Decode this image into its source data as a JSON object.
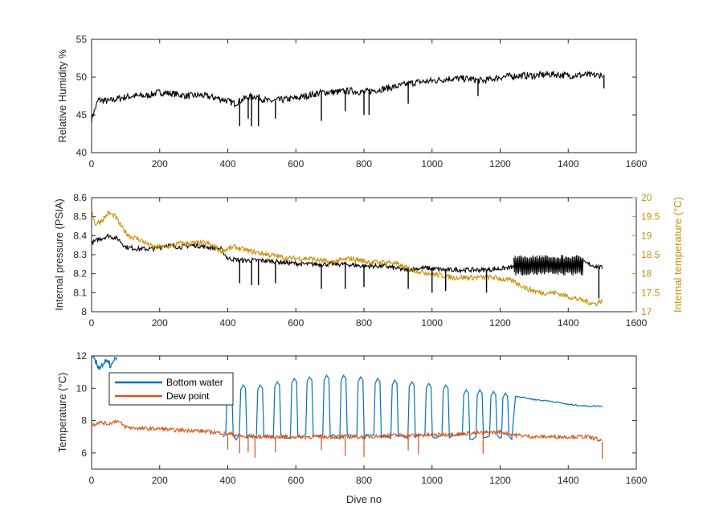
{
  "colors": {
    "black_series": "#000000",
    "blue": "#0072bd",
    "orange": "#d95319",
    "gold": "#c8900a",
    "axis": "#262626"
  },
  "chart_data": [
    {
      "type": "line",
      "id": "humidity",
      "xlabel": "",
      "ylabel": "Relative Humidity %",
      "xlim": [
        0,
        1600
      ],
      "ylim": [
        40,
        55
      ],
      "xticks": [
        0,
        200,
        400,
        600,
        800,
        1000,
        1200,
        1400,
        1600
      ],
      "yticks": [
        40,
        45,
        50,
        55
      ],
      "series": [
        {
          "color": "#000000",
          "x": [
            0,
            20,
            50,
            80,
            120,
            160,
            200,
            240,
            280,
            320,
            360,
            390,
            420,
            450,
            480,
            520,
            560,
            600,
            640,
            680,
            720,
            760,
            800,
            850,
            900,
            950,
            1000,
            1050,
            1100,
            1150,
            1200,
            1250,
            1300,
            1350,
            1400,
            1450,
            1480,
            1500
          ],
          "y": [
            44.5,
            47.0,
            46.8,
            47.2,
            47.5,
            47.5,
            48.0,
            47.8,
            47.5,
            47.6,
            47.3,
            47.0,
            46.5,
            47.2,
            47.5,
            46.8,
            47.0,
            47.2,
            47.6,
            48.0,
            48.0,
            48.2,
            48.0,
            48.4,
            48.8,
            49.3,
            49.5,
            49.8,
            49.8,
            49.5,
            50.0,
            50.2,
            50.2,
            50.4,
            50.2,
            50.3,
            50.2,
            50.3
          ]
        }
      ],
      "spikes": [
        {
          "x": 435,
          "y": 43.5
        },
        {
          "x": 460,
          "y": 44.5
        },
        {
          "x": 470,
          "y": 43.5
        },
        {
          "x": 490,
          "y": 43.5
        },
        {
          "x": 540,
          "y": 44.5
        },
        {
          "x": 675,
          "y": 44.2
        },
        {
          "x": 745,
          "y": 45.5
        },
        {
          "x": 800,
          "y": 45.0
        },
        {
          "x": 815,
          "y": 45.0
        },
        {
          "x": 930,
          "y": 46.5
        },
        {
          "x": 1135,
          "y": 47.5
        },
        {
          "x": 1505,
          "y": 48.5
        }
      ]
    },
    {
      "type": "line",
      "id": "pressure",
      "xlabel": "",
      "ylabel": "Internal pressure (PSIA)",
      "ylabel_right": "Internal temperature (°C)",
      "xlim": [
        0,
        1600
      ],
      "ylim": [
        8,
        8.6
      ],
      "ylim_right": [
        17,
        20
      ],
      "xticks": [
        0,
        200,
        400,
        600,
        800,
        1000,
        1200,
        1400,
        1600
      ],
      "yticks": [
        8,
        8.1,
        8.2,
        8.3,
        8.4,
        8.5,
        8.6
      ],
      "yticks_right": [
        17,
        17.5,
        18,
        18.5,
        19,
        19.5,
        20
      ],
      "series": [
        {
          "axis": "left",
          "color": "#000000",
          "x": [
            0,
            20,
            50,
            80,
            100,
            140,
            180,
            220,
            260,
            300,
            340,
            380,
            400,
            440,
            500,
            560,
            620,
            680,
            740,
            800,
            860,
            920,
            980,
            1040,
            1100,
            1160,
            1220,
            1260,
            1300,
            1350,
            1400,
            1440,
            1480,
            1500
          ],
          "y": [
            8.36,
            8.38,
            8.4,
            8.38,
            8.34,
            8.33,
            8.33,
            8.35,
            8.34,
            8.35,
            8.34,
            8.33,
            8.28,
            8.27,
            8.27,
            8.26,
            8.25,
            8.25,
            8.25,
            8.24,
            8.24,
            8.22,
            8.23,
            8.22,
            8.22,
            8.22,
            8.23,
            8.24,
            8.25,
            8.25,
            8.25,
            8.26,
            8.24,
            8.23
          ]
        },
        {
          "axis": "right",
          "color": "#c8900a",
          "x": [
            0,
            10,
            30,
            50,
            70,
            90,
            110,
            140,
            180,
            220,
            260,
            300,
            340,
            380,
            420,
            460,
            520,
            580,
            640,
            700,
            760,
            820,
            880,
            940,
            1000,
            1060,
            1120,
            1180,
            1240,
            1280,
            1320,
            1360,
            1400,
            1440,
            1480,
            1500
          ],
          "y": [
            19.7,
            19.3,
            19.4,
            19.6,
            19.5,
            19.2,
            19.0,
            18.9,
            18.7,
            18.7,
            18.8,
            18.8,
            18.8,
            18.6,
            18.7,
            18.6,
            18.5,
            18.4,
            18.4,
            18.3,
            18.4,
            18.3,
            18.3,
            18.1,
            18.0,
            17.9,
            17.9,
            17.9,
            17.8,
            17.6,
            17.5,
            17.5,
            17.4,
            17.3,
            17.2,
            17.3
          ]
        }
      ],
      "spikes": [
        {
          "x": 435,
          "y": 8.15
        },
        {
          "x": 470,
          "y": 8.14
        },
        {
          "x": 490,
          "y": 8.14
        },
        {
          "x": 540,
          "y": 8.15
        },
        {
          "x": 675,
          "y": 8.12
        },
        {
          "x": 745,
          "y": 8.12
        },
        {
          "x": 800,
          "y": 8.13
        },
        {
          "x": 930,
          "y": 8.12
        },
        {
          "x": 1000,
          "y": 8.1
        },
        {
          "x": 1040,
          "y": 8.11
        },
        {
          "x": 1160,
          "y": 8.1
        },
        {
          "x": 1490,
          "y": 8.07
        }
      ],
      "oscillation": {
        "x_start": 1240,
        "x_end": 1445,
        "y_low": 8.19,
        "y_high": 8.3
      }
    },
    {
      "type": "line",
      "id": "temperature",
      "xlabel": "Dive no",
      "ylabel": "Temperature (°C)",
      "xlim": [
        0,
        1600
      ],
      "ylim": [
        5,
        12
      ],
      "xticks": [
        0,
        200,
        400,
        600,
        800,
        1000,
        1200,
        1400,
        1600
      ],
      "yticks": [
        6,
        8,
        10,
        12
      ],
      "legend": {
        "placement": "top-left",
        "entries": [
          "Bottom water",
          "Dew point"
        ]
      },
      "series": [
        {
          "name": "Bottom water",
          "color": "#0072bd",
          "x": [
            0,
            20,
            40,
            60,
            75,
            390,
            1250,
            1300,
            1350,
            1400,
            1450,
            1500
          ],
          "y": [
            12,
            11.3,
            11.6,
            11.4,
            12,
            6.8,
            9.5,
            9.3,
            9.2,
            9.0,
            8.9,
            8.9
          ],
          "pulses": [
            {
              "x": 405,
              "h": 10.1
            },
            {
              "x": 445,
              "h": 10.2
            },
            {
              "x": 495,
              "h": 10.2
            },
            {
              "x": 545,
              "h": 10.4
            },
            {
              "x": 595,
              "h": 10.6
            },
            {
              "x": 640,
              "h": 10.7
            },
            {
              "x": 690,
              "h": 10.8
            },
            {
              "x": 740,
              "h": 10.8
            },
            {
              "x": 790,
              "h": 10.7
            },
            {
              "x": 840,
              "h": 10.6
            },
            {
              "x": 890,
              "h": 10.5
            },
            {
              "x": 940,
              "h": 10.4
            },
            {
              "x": 990,
              "h": 10.3
            },
            {
              "x": 1040,
              "h": 10.2
            },
            {
              "x": 1100,
              "h": 9.9
            },
            {
              "x": 1140,
              "h": 9.9
            },
            {
              "x": 1180,
              "h": 9.8
            },
            {
              "x": 1215,
              "h": 9.7
            }
          ],
          "base": 7.0
        },
        {
          "name": "Dew point",
          "color": "#d95319",
          "x": [
            0,
            20,
            50,
            75,
            100,
            150,
            200,
            250,
            300,
            350,
            400,
            450,
            500,
            600,
            700,
            800,
            900,
            1000,
            1100,
            1200,
            1250,
            1300,
            1350,
            1400,
            1450,
            1480,
            1500
          ],
          "y": [
            7.7,
            7.9,
            7.8,
            8.0,
            7.6,
            7.5,
            7.5,
            7.4,
            7.4,
            7.3,
            7.2,
            7.0,
            7.0,
            7.0,
            7.0,
            7.0,
            7.1,
            7.1,
            7.2,
            7.3,
            7.1,
            7.0,
            7.0,
            7.0,
            7.0,
            6.9,
            6.7
          ]
        }
      ]
    }
  ]
}
